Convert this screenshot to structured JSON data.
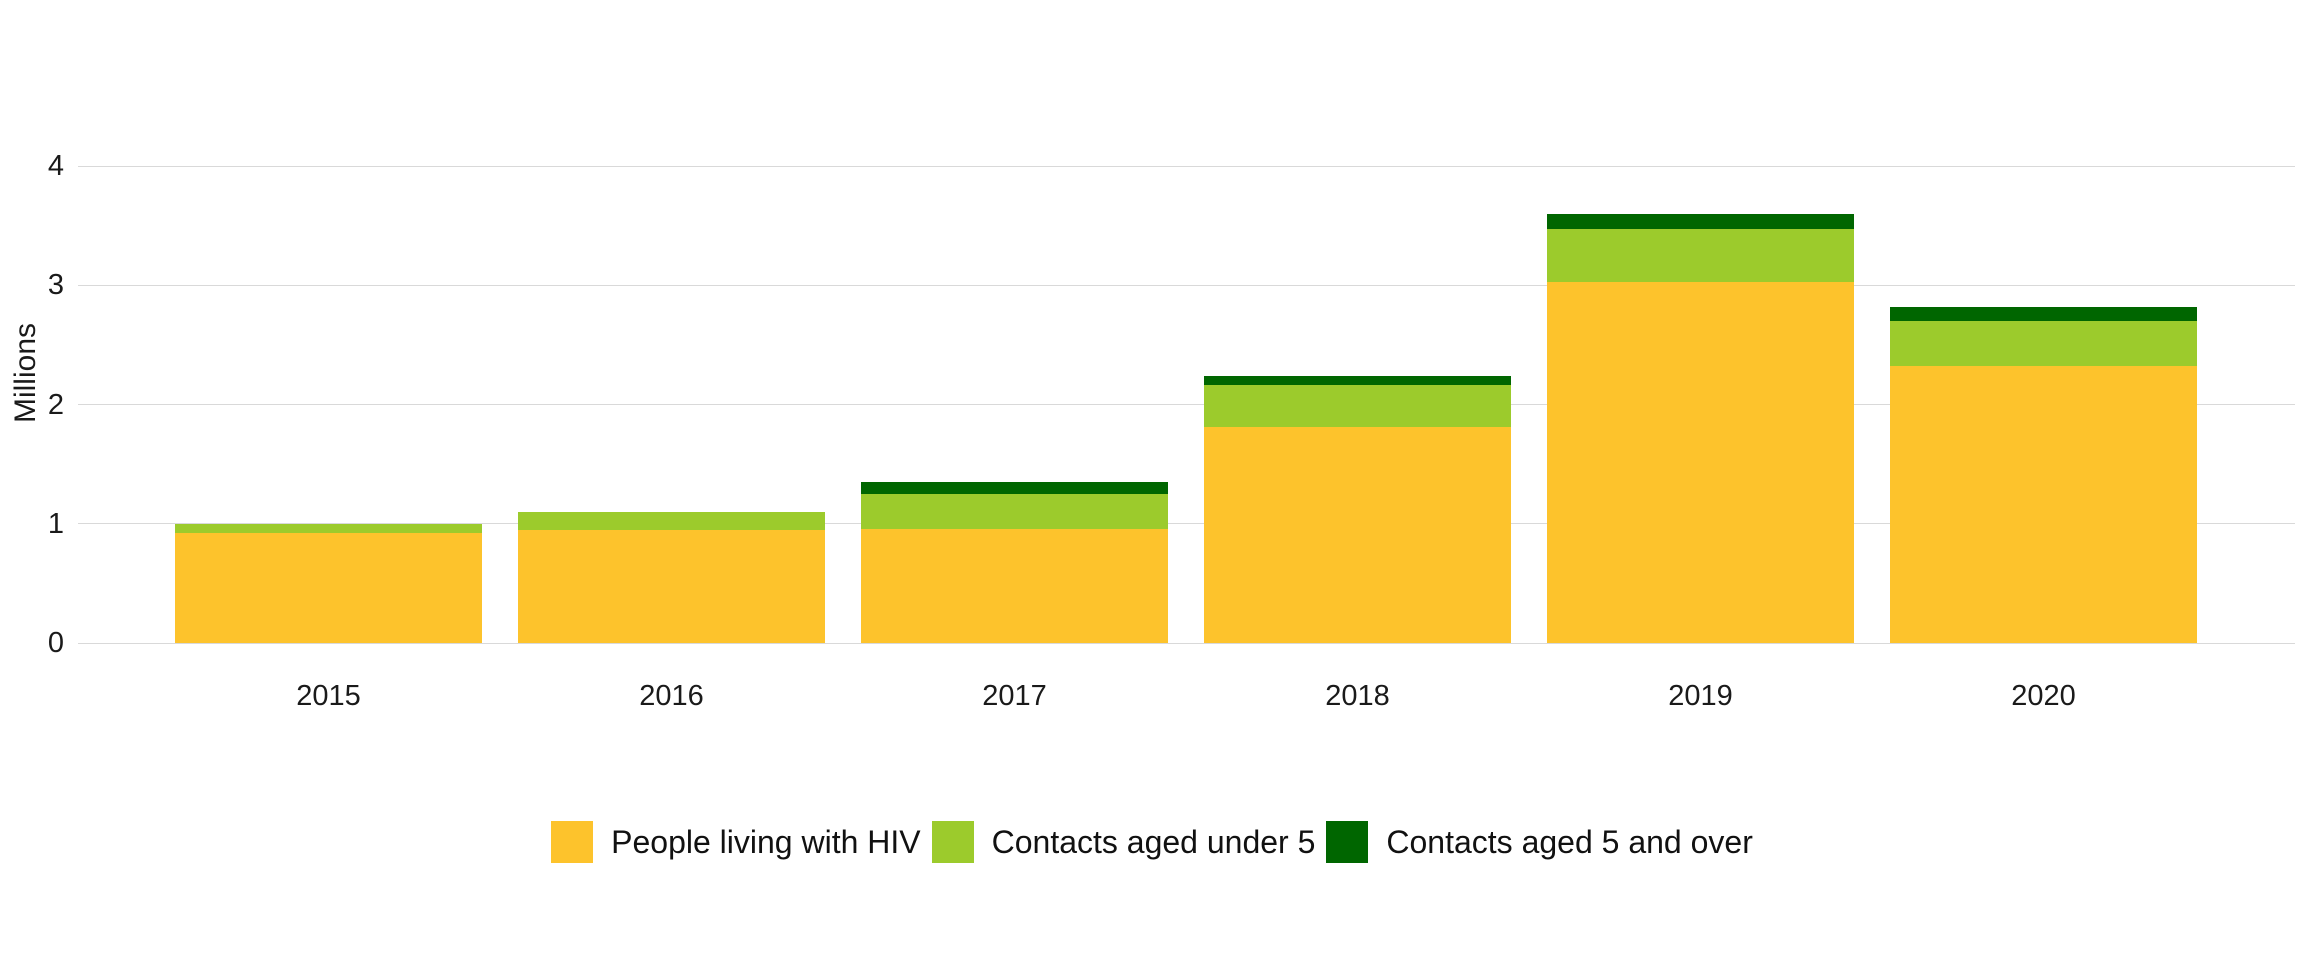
{
  "page": {
    "background": "#ffffff"
  },
  "chart_data": {
    "type": "bar",
    "stacked": true,
    "title": "",
    "xlabel": "",
    "ylabel": "Millions",
    "categories": [
      "2015",
      "2016",
      "2017",
      "2018",
      "2019",
      "2020"
    ],
    "series": [
      {
        "name": "People living with HIV",
        "color": "#FDC32C",
        "values": [
          0.92,
          0.95,
          0.96,
          1.81,
          3.03,
          2.32
        ]
      },
      {
        "name": "Contacts aged under 5",
        "color": "#9CCB2C",
        "values": [
          0.08,
          0.15,
          0.29,
          0.35,
          0.44,
          0.38
        ]
      },
      {
        "name": "Contacts aged 5 and over",
        "color": "#006600",
        "values": [
          0.0,
          0.0,
          0.1,
          0.08,
          0.13,
          0.12
        ]
      }
    ],
    "yticks": [
      0,
      1,
      2,
      3,
      4
    ],
    "ytick_labels": [
      "0",
      "1",
      "2",
      "3",
      "4"
    ],
    "ylim": [
      0,
      4
    ],
    "grid": true,
    "gridline_color": "#d9d9d9",
    "text_color": "#1a1a1a",
    "legend_position": "bottom"
  }
}
